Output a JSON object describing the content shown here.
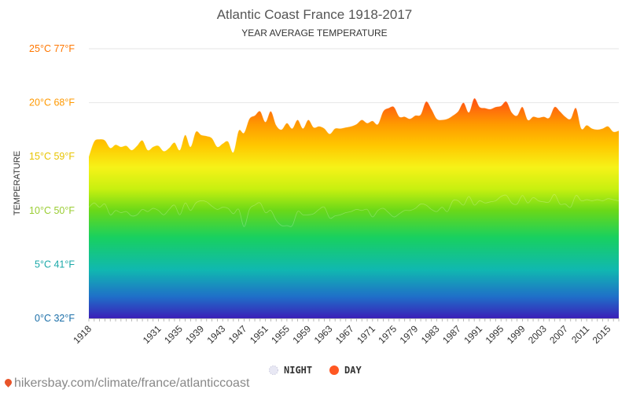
{
  "colors": {
    "night": "#e8e8f4",
    "day": "#ff5722",
    "title": "#555555",
    "grid": "#e6e6e6",
    "footer": "#888888",
    "pin": "#e8542a"
  },
  "chart_data": {
    "type": "area",
    "title": "Atlantic Coast France 1918-2017",
    "subtitle": "YEAR AVERAGE TEMPERATURE",
    "ylabel": "TEMPERATURE",
    "xlabel": "",
    "ylim": [
      0,
      25
    ],
    "grid": true,
    "legend_position": "bottom-center",
    "y_ticks": [
      {
        "value": 0,
        "label": "0°C 32°F",
        "color": "#1a6ea8"
      },
      {
        "value": 5,
        "label": "5°C 41°F",
        "color": "#1aa8a8"
      },
      {
        "value": 10,
        "label": "10°C 50°F",
        "color": "#9acd32"
      },
      {
        "value": 15,
        "label": "15°C 59°F",
        "color": "#e8c400"
      },
      {
        "value": 20,
        "label": "20°C 68°F",
        "color": "#ff9900"
      },
      {
        "value": 25,
        "label": "25°C 77°F",
        "color": "#ff7700"
      }
    ],
    "x_tick_labels": [
      "1918",
      "1931",
      "1935",
      "1939",
      "1943",
      "1947",
      "1951",
      "1955",
      "1959",
      "1963",
      "1967",
      "1971",
      "1975",
      "1979",
      "1983",
      "1987",
      "1991",
      "1995",
      "1999",
      "2003",
      "2007",
      "2011",
      "2015"
    ],
    "x": [
      1918,
      1919,
      1920,
      1921,
      1922,
      1923,
      1924,
      1925,
      1926,
      1927,
      1928,
      1929,
      1930,
      1931,
      1932,
      1933,
      1934,
      1935,
      1936,
      1937,
      1938,
      1939,
      1940,
      1941,
      1942,
      1943,
      1944,
      1945,
      1946,
      1947,
      1948,
      1949,
      1950,
      1951,
      1952,
      1953,
      1954,
      1955,
      1956,
      1957,
      1958,
      1959,
      1960,
      1961,
      1962,
      1963,
      1964,
      1965,
      1966,
      1967,
      1968,
      1969,
      1970,
      1971,
      1972,
      1973,
      1974,
      1975,
      1976,
      1977,
      1978,
      1979,
      1980,
      1981,
      1982,
      1983,
      1984,
      1985,
      1986,
      1987,
      1988,
      1989,
      1990,
      1991,
      1992,
      1993,
      1994,
      1995,
      1996,
      1997,
      1998,
      1999,
      2000,
      2001,
      2002,
      2003,
      2004,
      2005,
      2006,
      2007,
      2008,
      2009,
      2010,
      2011,
      2012,
      2013,
      2014,
      2015,
      2016,
      2017
    ],
    "series": [
      {
        "name": "DAY",
        "values": [
          15.0,
          16.4,
          16.6,
          16.5,
          15.8,
          16.1,
          15.9,
          16.0,
          15.6,
          16.0,
          16.5,
          15.6,
          15.9,
          16.0,
          15.5,
          15.8,
          16.3,
          15.6,
          17.0,
          15.9,
          17.3,
          17.0,
          16.9,
          16.7,
          15.9,
          16.2,
          16.4,
          15.4,
          17.4,
          17.2,
          18.5,
          18.8,
          19.2,
          18.2,
          19.2,
          17.9,
          17.5,
          18.1,
          17.6,
          18.4,
          17.6,
          18.4,
          17.7,
          17.8,
          17.6,
          17.1,
          17.6,
          17.6,
          17.7,
          17.8,
          18.0,
          18.4,
          18.1,
          18.3,
          18.0,
          19.2,
          19.5,
          19.6,
          18.7,
          18.7,
          18.5,
          18.8,
          18.9,
          20.1,
          19.4,
          18.5,
          18.4,
          18.5,
          18.8,
          19.2,
          20.0,
          19.1,
          20.4,
          19.6,
          19.5,
          19.4,
          19.6,
          19.7,
          20.1,
          19.1,
          18.8,
          19.6,
          18.4,
          18.7,
          18.6,
          18.7,
          18.6,
          19.6,
          19.2,
          18.7,
          18.5,
          19.5,
          17.6,
          17.9,
          17.6,
          17.5,
          17.6,
          17.8,
          17.3,
          17.4
        ]
      },
      {
        "name": "NIGHT",
        "values": [
          10.3,
          10.7,
          10.3,
          10.6,
          9.6,
          10.0,
          9.8,
          9.9,
          9.5,
          9.6,
          10.1,
          9.9,
          10.2,
          10.0,
          9.6,
          10.1,
          10.5,
          9.6,
          10.7,
          10.0,
          10.7,
          10.9,
          10.8,
          10.4,
          10.1,
          10.3,
          10.2,
          9.7,
          10.1,
          8.5,
          10.1,
          10.5,
          10.7,
          9.8,
          10.0,
          9.1,
          8.6,
          8.6,
          8.6,
          9.9,
          9.6,
          9.6,
          9.7,
          10.1,
          10.3,
          9.3,
          9.5,
          9.6,
          9.8,
          9.9,
          10.1,
          10.0,
          10.1,
          9.4,
          10.0,
          10.2,
          9.8,
          9.4,
          9.7,
          10.0,
          10.0,
          10.2,
          10.6,
          10.5,
          10.1,
          9.9,
          10.3,
          9.9,
          10.9,
          10.9,
          10.5,
          11.3,
          10.5,
          10.9,
          10.7,
          10.8,
          10.9,
          11.3,
          11.4,
          10.7,
          10.6,
          11.4,
          10.7,
          11.2,
          10.9,
          10.8,
          10.8,
          11.5,
          10.6,
          10.6,
          10.3,
          11.4,
          10.9,
          11.0,
          10.9,
          11.0,
          10.9,
          11.1,
          11.0,
          10.9
        ]
      }
    ]
  },
  "legend": {
    "night": "NIGHT",
    "day": "DAY"
  },
  "footer": {
    "text": "hikersbay.com/climate/france/atlanticcoast",
    "icon": "map-pin-icon"
  }
}
